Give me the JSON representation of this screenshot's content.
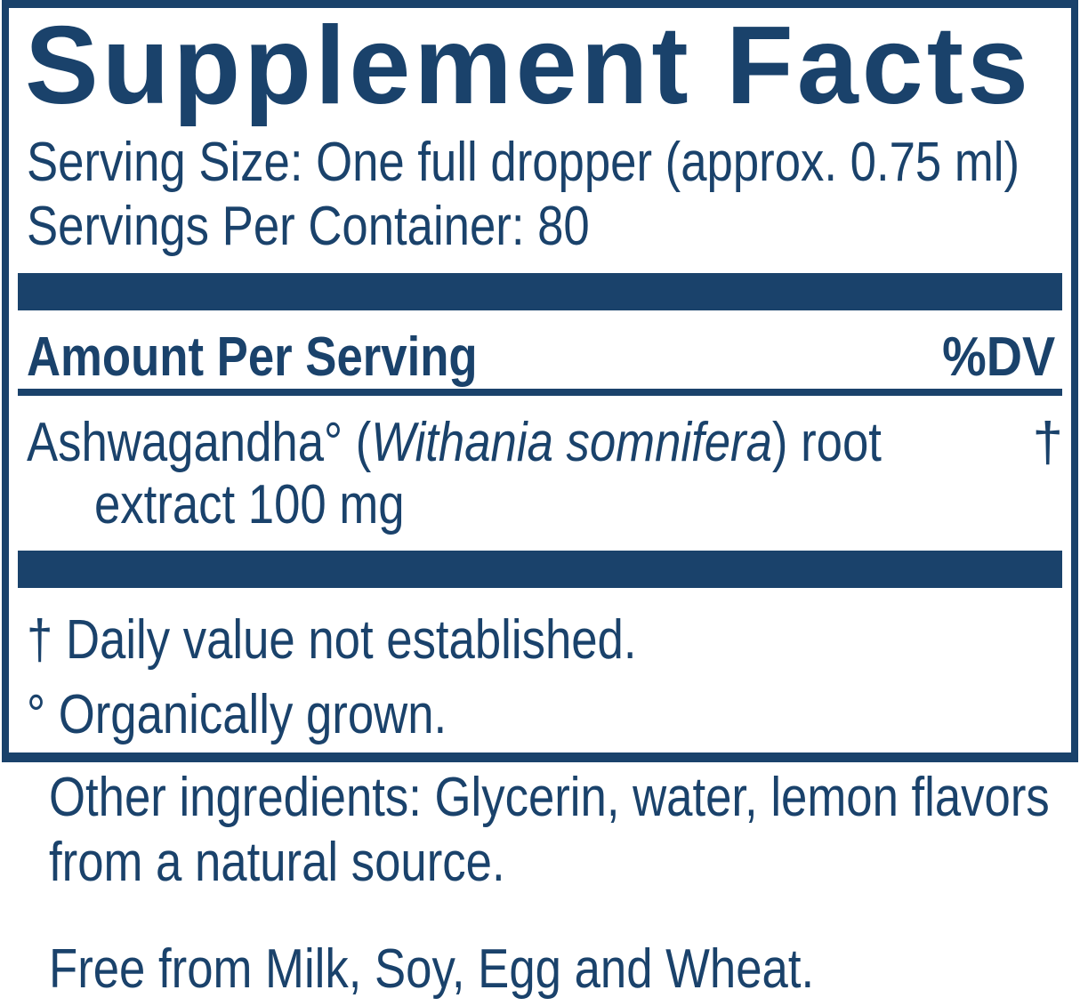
{
  "colors": {
    "navy": "#1a426b",
    "background": "#ffffff"
  },
  "label": {
    "title": "Supplement Facts",
    "serving_size": "Serving Size: One full dropper (approx. 0.75 ml)",
    "servings_per_container": "Servings Per Container: 80",
    "header": {
      "amount": "Amount Per Serving",
      "dv": "%DV"
    },
    "ingredients": [
      {
        "name_prefix": "Ashwagandha° (",
        "name_italic": "Withania somnifera",
        "name_suffix": ") root",
        "amount_line": "extract 100 mg",
        "dv": "†"
      }
    ],
    "footnotes": [
      "† Daily value not established.",
      "° Organically grown."
    ]
  },
  "additional": {
    "other_ingredients_lines": [
      "Other ingredients: Glycerin, water, lemon flavors",
      "from a natural source."
    ],
    "free_from": "Free from Milk, Soy, Egg and Wheat."
  }
}
